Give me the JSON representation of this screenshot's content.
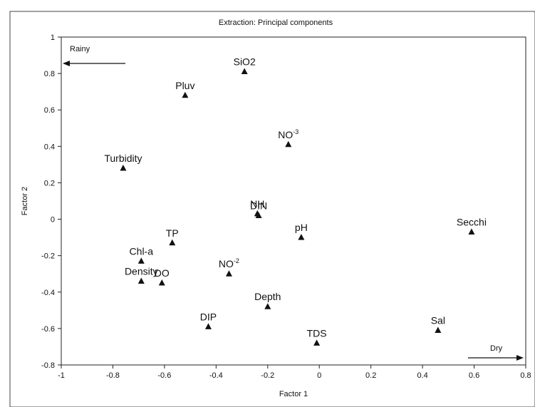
{
  "chart_data": {
    "type": "scatter",
    "title": "Extraction: Principal components",
    "xlabel": "Factor 1",
    "ylabel": "Factor 2",
    "xlim": [
      -1,
      0.8
    ],
    "ylim": [
      -0.8,
      1
    ],
    "x_ticks": [
      -1,
      -0.8,
      -0.6,
      -0.4,
      -0.2,
      0,
      0.2,
      0.4,
      0.6,
      0.8
    ],
    "y_ticks": [
      -0.8,
      -0.6,
      -0.4,
      -0.2,
      0,
      0.2,
      0.4,
      0.6,
      0.8,
      1
    ],
    "x_tick_labels": [
      "-1",
      "-0.8",
      "-0.6",
      "-0.4",
      "-0.2",
      "0",
      "0.2",
      "0.4",
      "0.6",
      "0.8"
    ],
    "y_tick_labels": [
      "-0.8",
      "-0.6",
      "-0.4",
      "-0.2",
      "0",
      "0.2",
      "0.4",
      "0.6",
      "0.8",
      "1"
    ],
    "grid": false,
    "marker": "triangle",
    "points": [
      {
        "label": "SiO2",
        "x": -0.29,
        "y": 0.81
      },
      {
        "label": "Pluv",
        "x": -0.52,
        "y": 0.68
      },
      {
        "label": "NO",
        "sup": "-3",
        "x": -0.12,
        "y": 0.41
      },
      {
        "label": "Turbidity",
        "x": -0.76,
        "y": 0.28
      },
      {
        "label": "NH",
        "x": -0.24,
        "y": 0.03
      },
      {
        "label": "DIN",
        "x": -0.235,
        "y": 0.02
      },
      {
        "label": "Secchi",
        "x": 0.59,
        "y": -0.07
      },
      {
        "label": "pH",
        "x": -0.07,
        "y": -0.1
      },
      {
        "label": "TP",
        "x": -0.57,
        "y": -0.13
      },
      {
        "label": "Chl-a",
        "x": -0.69,
        "y": -0.23
      },
      {
        "label": "NO",
        "sup": "-2",
        "x": -0.35,
        "y": -0.3
      },
      {
        "label": "Density",
        "x": -0.69,
        "y": -0.34
      },
      {
        "label": "DO",
        "x": -0.61,
        "y": -0.35
      },
      {
        "label": "Depth",
        "x": -0.2,
        "y": -0.48
      },
      {
        "label": "DIP",
        "x": -0.43,
        "y": -0.59
      },
      {
        "label": "Sal",
        "x": 0.46,
        "y": -0.61
      },
      {
        "label": "TDS",
        "x": -0.01,
        "y": -0.68
      }
    ],
    "annotations": [
      {
        "text": "Rainy",
        "arrow": "left",
        "position": "top-left"
      },
      {
        "text": "Dry",
        "arrow": "right",
        "position": "bottom-right"
      }
    ]
  }
}
